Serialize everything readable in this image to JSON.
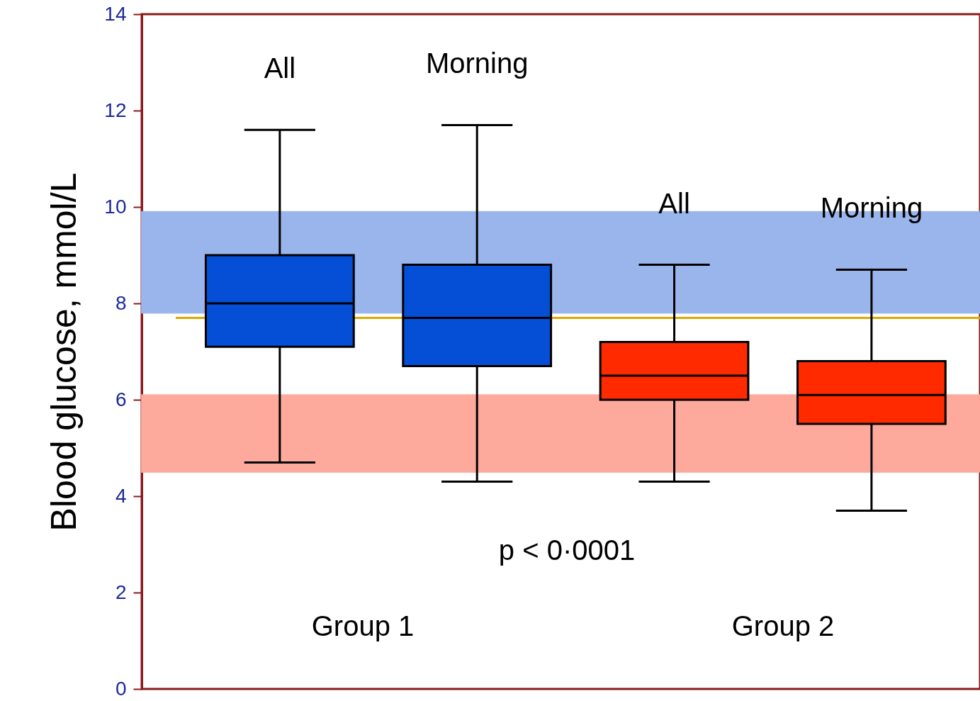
{
  "chart_data": {
    "type": "box",
    "ylabel": "Blood glucose, mmol/L",
    "categories": [
      "All",
      "Morning",
      "All",
      "Morning"
    ],
    "colors": [
      "#054fd6",
      "#054fd6",
      "#ff2a00",
      "#ff2a00"
    ],
    "boxes": [
      {
        "low": 4.7,
        "q1": 7.1,
        "median": 8.0,
        "q3": 9.0,
        "high": 11.6
      },
      {
        "low": 4.3,
        "q1": 6.7,
        "median": 7.7,
        "q3": 8.8,
        "high": 11.7
      },
      {
        "low": 4.3,
        "q1": 6.0,
        "median": 6.5,
        "q3": 7.2,
        "high": 8.8
      },
      {
        "low": 3.7,
        "q1": 5.5,
        "median": 6.1,
        "q3": 6.8,
        "high": 8.7
      }
    ],
    "ylim": [
      0,
      14
    ],
    "yticks": [
      0,
      2,
      4,
      6,
      8,
      10,
      12,
      14
    ],
    "bands": [
      {
        "axis": "y",
        "from": 7.8,
        "to": 9.9,
        "color": "#9ab5ec"
      },
      {
        "axis": "y",
        "from": 4.5,
        "to": 6.1,
        "color": "#fdaa9c"
      }
    ],
    "ref_lines": [
      {
        "axis": "y",
        "value": 7.7,
        "color": "#e0a800"
      }
    ],
    "annotations": [
      "p < 0·0001",
      "Group 1",
      "Group 2"
    ],
    "grid": false
  }
}
